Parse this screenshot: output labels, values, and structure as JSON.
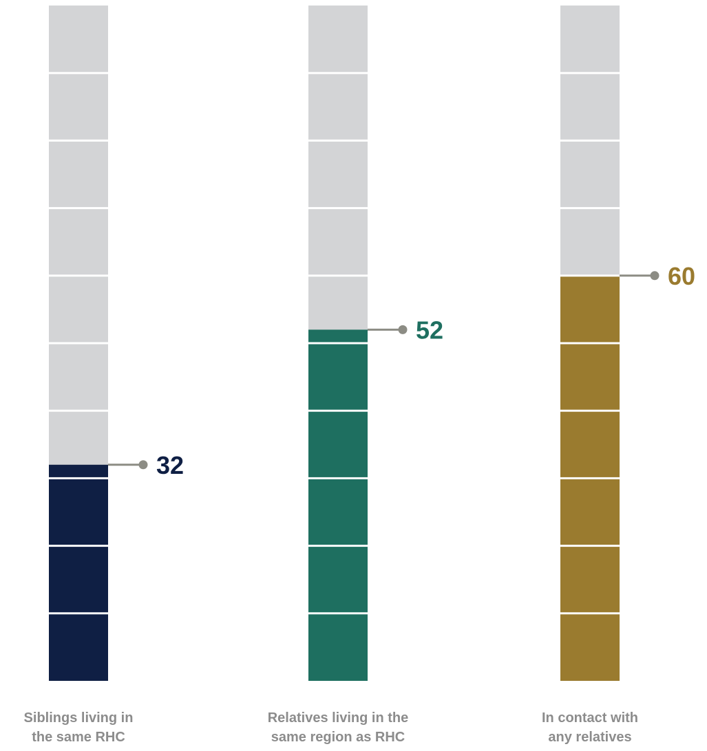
{
  "chart_data": {
    "type": "bar",
    "title": "",
    "xlabel": "",
    "ylabel": "",
    "ylim": [
      0,
      100
    ],
    "categories": [
      [
        "Siblings living in",
        "the same RHC"
      ],
      [
        "Relatives living in the",
        "same region as RHC"
      ],
      [
        "In contact with",
        "any relatives"
      ]
    ],
    "values": [
      32,
      52,
      60
    ],
    "value_labels": [
      "32",
      "52",
      "60"
    ],
    "colors": [
      "#0f1f44",
      "#1e6f60",
      "#9a7b2f"
    ],
    "track_color": "#d3d4d6",
    "leader_color": "#8c8c84",
    "label_color": "#8c8c8c",
    "segment_count": 10
  }
}
